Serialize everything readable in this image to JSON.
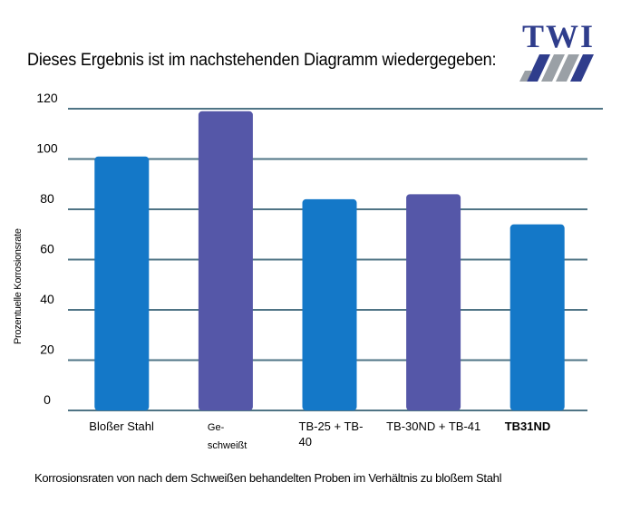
{
  "header": {
    "title": "Dieses Ergebnis ist im nachstehenden Diagramm wiedergegeben:",
    "logo_text": "TWI"
  },
  "caption": "Korrosionsraten von nach dem Schweißen behandelten Proben im Verhältnis zu bloßem Stahl",
  "colors": {
    "blue": "#1478c8",
    "purple": "#5557a8",
    "grid": "#4f7485"
  },
  "chart_data": {
    "type": "bar",
    "categories": [
      [
        "Bloßer Stahl"
      ],
      [
        "Ge-",
        "schweißt"
      ],
      [
        "TB-25 + TB-",
        "40"
      ],
      [
        "TB-30ND + TB-41"
      ],
      [
        "TB31ND"
      ]
    ],
    "values": [
      101,
      119,
      84,
      86,
      74
    ],
    "bar_colors": [
      "#1478c8",
      "#5557a8",
      "#1478c8",
      "#5557a8",
      "#1478c8"
    ],
    "title": "Dieses Ergebnis ist im nachstehenden Diagramm wiedergegeben:",
    "xlabel": "",
    "ylabel": "Prozentuelle Korrosionsrate",
    "ylim": [
      0,
      120
    ],
    "yticks": [
      "0",
      "20",
      "40",
      "60",
      "80",
      "100",
      "120"
    ],
    "grid": true,
    "legend": false
  }
}
